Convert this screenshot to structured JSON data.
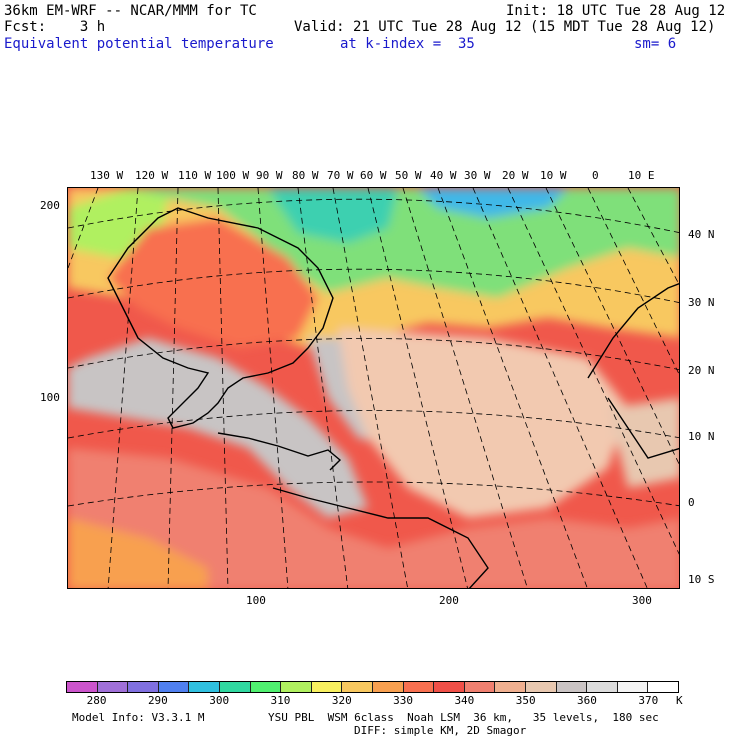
{
  "header": {
    "line1_left": "36km EM-WRF -- NCAR/MMM for TC",
    "line1_right": "Init: 18 UTC Tue 28 Aug 12",
    "line2_left": "Fcst:    3 h",
    "line2_right": "Valid: 21 UTC Tue 28 Aug 12 (15 MDT Tue 28 Aug 12)",
    "field_name": "Equivalent potential temperature",
    "level": "at k-index =  35",
    "smoothing": "sm= 6"
  },
  "map": {
    "lon_labels": [
      "130 W",
      "120 W",
      "110 W",
      "100 W",
      "90 W",
      "80 W",
      "70 W",
      "60 W",
      "50 W",
      "40 W",
      "30 W",
      "20 W",
      "10 W",
      "0",
      "10 E"
    ],
    "lat_labels": [
      "40 N",
      "30 N",
      "20 N",
      "10 N",
      "0",
      "10 S"
    ],
    "grid_y_labels": [
      "200",
      "100"
    ],
    "grid_x_labels": [
      "100",
      "200",
      "300"
    ],
    "background_regions": [
      {
        "name": "north-cold-band",
        "color": "#3cd0b0"
      },
      {
        "name": "mid-latitude-green",
        "color": "#7fe07a"
      },
      {
        "name": "continental-warm",
        "color": "#f3a35a"
      },
      {
        "name": "tropical-red",
        "color": "#f0584b"
      },
      {
        "name": "subtropical-tan",
        "color": "#f2c9b0"
      },
      {
        "name": "gray-plume",
        "color": "#c8c4c4"
      }
    ]
  },
  "colorbar": {
    "colors": [
      "#cc55cc",
      "#a070d8",
      "#8070e0",
      "#5080f0",
      "#30c0e0",
      "#30d8a0",
      "#50f070",
      "#b0f060",
      "#f8f060",
      "#f8c860",
      "#f8a050",
      "#f87050",
      "#f05048",
      "#f08070",
      "#f0b090",
      "#e8c8b0",
      "#cac4c4",
      "#dcdcdc",
      "#f4f4f4",
      "#ffffff"
    ],
    "labels": [
      "280",
      "290",
      "300",
      "310",
      "320",
      "330",
      "340",
      "350",
      "360",
      "370"
    ],
    "unit": "K"
  },
  "footer": {
    "model_info": "Model Info: V3.3.1 M",
    "physics": "YSU PBL  WSM 6class  Noah LSM  36 km,   35 levels,  180 sec",
    "diffusion": "DIFF: simple KM, 2D Smagor"
  }
}
